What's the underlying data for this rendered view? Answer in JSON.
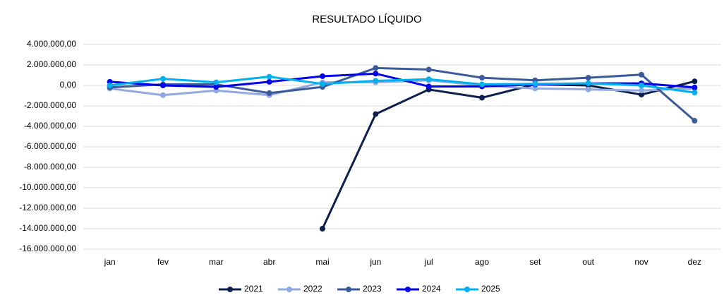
{
  "chart_data": {
    "type": "line",
    "title": "RESULTADO LÍQUIDO",
    "categories": [
      "jan",
      "fev",
      "mar",
      "abr",
      "mai",
      "jun",
      "jul",
      "ago",
      "set",
      "out",
      "nov",
      "dez"
    ],
    "series": [
      {
        "name": "2021",
        "color": "#0d1f4d",
        "values": [
          null,
          null,
          null,
          null,
          -14000000,
          -2800000,
          -400000,
          -1200000,
          100000,
          0,
          -900000,
          400000
        ]
      },
      {
        "name": "2022",
        "color": "#91a9e0",
        "values": [
          -300000,
          -950000,
          -500000,
          -950000,
          300000,
          300000,
          500000,
          0,
          -300000,
          -400000,
          -500000,
          -300000
        ]
      },
      {
        "name": "2023",
        "color": "#3b5a9a",
        "values": [
          -200000,
          100000,
          100000,
          -750000,
          -150000,
          1700000,
          1550000,
          750000,
          500000,
          750000,
          1050000,
          -3450000
        ]
      },
      {
        "name": "2024",
        "color": "#0000ee",
        "values": [
          350000,
          0,
          -150000,
          350000,
          900000,
          1150000,
          -100000,
          -100000,
          100000,
          200000,
          200000,
          -200000
        ]
      },
      {
        "name": "2025",
        "color": "#00b0f0",
        "values": [
          0,
          650000,
          300000,
          850000,
          150000,
          450000,
          600000,
          100000,
          150000,
          200000,
          0,
          -700000
        ]
      }
    ],
    "ylim": [
      -16000000,
      4000000
    ],
    "yticks": [
      {
        "value": -16000000,
        "label": "-16.000.000,00"
      },
      {
        "value": -14000000,
        "label": "-14.000.000,00"
      },
      {
        "value": -12000000,
        "label": "-12.000.000,00"
      },
      {
        "value": -10000000,
        "label": "-10.000.000,00"
      },
      {
        "value": -8000000,
        "label": "-8.000.000,00"
      },
      {
        "value": -6000000,
        "label": "-6.000.000,00"
      },
      {
        "value": -4000000,
        "label": "-4.000.000,00"
      },
      {
        "value": -2000000,
        "label": "-2.000.000,00"
      },
      {
        "value": 0,
        "label": "0,00"
      },
      {
        "value": 2000000,
        "label": "2.000.000,00"
      },
      {
        "value": 4000000,
        "label": "4.000.000,00"
      }
    ],
    "grid": true,
    "legend": "bottom"
  }
}
